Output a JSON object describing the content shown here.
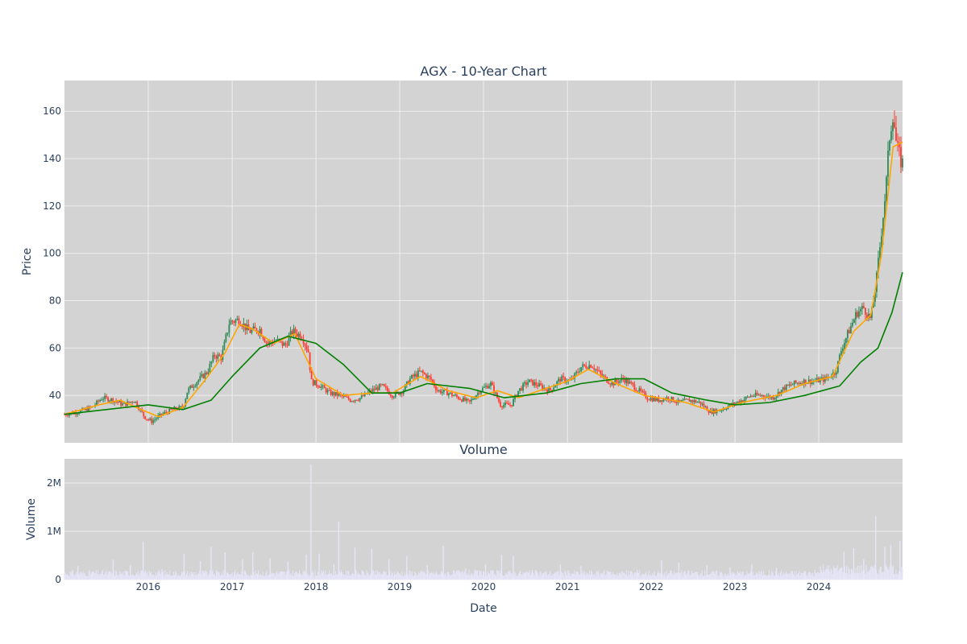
{
  "chart_data": [
    {
      "type": "candlestick",
      "title": "AGX - 10-Year Chart",
      "ylabel": "Price",
      "xlabel": "",
      "x_range": [
        "2015-01-01",
        "2024-12-31"
      ],
      "ylim": [
        20,
        173
      ],
      "y_ticks": [
        40,
        60,
        80,
        100,
        120,
        140,
        160
      ],
      "grid": true,
      "series": [
        {
          "kind": "close_path",
          "color_up": "#2e8b57",
          "color_down": "#ff3b30",
          "points": [
            [
              "2015-01-01",
              32
            ],
            [
              "2015-03-01",
              33
            ],
            [
              "2015-05-01",
              35
            ],
            [
              "2015-06-15",
              39
            ],
            [
              "2015-08-01",
              38
            ],
            [
              "2015-09-15",
              36
            ],
            [
              "2015-11-01",
              38
            ],
            [
              "2015-12-15",
              31
            ],
            [
              "2016-01-15",
              29
            ],
            [
              "2016-03-01",
              32
            ],
            [
              "2016-04-15",
              34
            ],
            [
              "2016-06-01",
              35
            ],
            [
              "2016-06-20",
              42
            ],
            [
              "2016-08-01",
              46
            ],
            [
              "2016-09-15",
              50
            ],
            [
              "2016-10-15",
              57
            ],
            [
              "2016-11-15",
              56
            ],
            [
              "2016-12-20",
              71
            ],
            [
              "2017-02-01",
              72
            ],
            [
              "2017-03-15",
              67
            ],
            [
              "2017-05-01",
              68
            ],
            [
              "2017-06-01",
              62
            ],
            [
              "2017-07-15",
              63
            ],
            [
              "2017-08-20",
              61
            ],
            [
              "2017-09-20",
              67
            ],
            [
              "2017-11-01",
              65
            ],
            [
              "2017-12-01",
              58
            ],
            [
              "2017-12-10",
              46
            ],
            [
              "2018-01-20",
              44
            ],
            [
              "2018-03-01",
              41
            ],
            [
              "2018-04-15",
              40
            ],
            [
              "2018-06-01",
              38
            ],
            [
              "2018-07-15",
              39
            ],
            [
              "2018-09-01",
              42
            ],
            [
              "2018-10-15",
              44
            ],
            [
              "2018-12-01",
              40
            ],
            [
              "2019-01-15",
              42
            ],
            [
              "2019-02-15",
              47
            ],
            [
              "2019-04-01",
              50
            ],
            [
              "2019-05-15",
              47
            ],
            [
              "2019-06-15",
              42
            ],
            [
              "2019-08-01",
              41
            ],
            [
              "2019-09-15",
              39
            ],
            [
              "2019-11-01",
              37
            ],
            [
              "2019-12-15",
              42
            ],
            [
              "2020-02-01",
              45
            ],
            [
              "2020-03-15",
              36
            ],
            [
              "2020-05-01",
              36
            ],
            [
              "2020-06-01",
              42
            ],
            [
              "2020-07-15",
              46
            ],
            [
              "2020-09-01",
              44
            ],
            [
              "2020-10-15",
              42
            ],
            [
              "2020-12-01",
              47
            ],
            [
              "2021-01-15",
              46
            ],
            [
              "2021-03-01",
              52
            ],
            [
              "2021-04-15",
              53
            ],
            [
              "2021-06-01",
              48
            ],
            [
              "2021-07-15",
              45
            ],
            [
              "2021-09-01",
              47
            ],
            [
              "2021-10-15",
              44
            ],
            [
              "2021-12-15",
              39
            ],
            [
              "2022-02-01",
              38
            ],
            [
              "2022-03-15",
              39
            ],
            [
              "2022-05-01",
              37
            ],
            [
              "2022-06-15",
              38
            ],
            [
              "2022-08-01",
              37
            ],
            [
              "2022-09-15",
              33
            ],
            [
              "2022-11-01",
              34
            ],
            [
              "2022-12-15",
              36
            ],
            [
              "2023-02-01",
              38
            ],
            [
              "2023-03-15",
              40
            ],
            [
              "2023-05-01",
              40
            ],
            [
              "2023-06-15",
              39
            ],
            [
              "2023-08-01",
              43
            ],
            [
              "2023-09-15",
              45
            ],
            [
              "2023-11-01",
              46
            ],
            [
              "2023-12-15",
              46
            ],
            [
              "2024-02-01",
              47
            ],
            [
              "2024-03-15",
              50
            ],
            [
              "2024-04-10",
              60
            ],
            [
              "2024-05-15",
              68
            ],
            [
              "2024-06-15",
              75
            ],
            [
              "2024-07-15",
              77
            ],
            [
              "2024-08-15",
              72
            ],
            [
              "2024-09-10",
              90
            ],
            [
              "2024-10-01",
              110
            ],
            [
              "2024-10-20",
              128
            ],
            [
              "2024-11-05",
              150
            ],
            [
              "2024-11-20",
              160
            ],
            [
              "2024-12-05",
              145
            ],
            [
              "2024-12-20",
              140
            ],
            [
              "2024-12-31",
              138
            ]
          ]
        },
        {
          "kind": "moving_average_short",
          "color": "#ffa500",
          "points": [
            [
              "2015-01-01",
              32
            ],
            [
              "2015-06-01",
              36
            ],
            [
              "2015-09-01",
              38
            ],
            [
              "2015-12-01",
              34
            ],
            [
              "2016-02-15",
              31
            ],
            [
              "2016-06-01",
              35
            ],
            [
              "2016-09-01",
              46
            ],
            [
              "2016-12-01",
              58
            ],
            [
              "2017-02-01",
              70
            ],
            [
              "2017-04-01",
              68
            ],
            [
              "2017-07-01",
              62
            ],
            [
              "2017-10-01",
              66
            ],
            [
              "2018-01-01",
              47
            ],
            [
              "2018-05-01",
              40
            ],
            [
              "2018-09-01",
              41
            ],
            [
              "2018-12-01",
              41
            ],
            [
              "2019-04-01",
              48
            ],
            [
              "2019-08-01",
              42
            ],
            [
              "2019-12-01",
              39
            ],
            [
              "2020-03-01",
              42
            ],
            [
              "2020-06-01",
              39
            ],
            [
              "2020-10-01",
              43
            ],
            [
              "2021-01-01",
              46
            ],
            [
              "2021-04-01",
              51
            ],
            [
              "2021-08-01",
              45
            ],
            [
              "2021-12-01",
              40
            ],
            [
              "2022-06-01",
              37
            ],
            [
              "2022-10-01",
              33
            ],
            [
              "2023-02-01",
              37
            ],
            [
              "2023-07-01",
              40
            ],
            [
              "2023-11-01",
              45
            ],
            [
              "2024-03-01",
              48
            ],
            [
              "2024-06-01",
              67
            ],
            [
              "2024-08-15",
              74
            ],
            [
              "2024-10-01",
              100
            ],
            [
              "2024-11-20",
              145
            ],
            [
              "2024-12-31",
              147
            ]
          ]
        },
        {
          "kind": "moving_average_long",
          "color": "#008000",
          "points": [
            [
              "2015-01-01",
              32
            ],
            [
              "2015-07-01",
              34
            ],
            [
              "2016-01-01",
              36
            ],
            [
              "2016-06-01",
              34
            ],
            [
              "2016-10-01",
              38
            ],
            [
              "2017-01-01",
              48
            ],
            [
              "2017-05-01",
              60
            ],
            [
              "2017-09-01",
              65
            ],
            [
              "2018-01-01",
              62
            ],
            [
              "2018-05-01",
              53
            ],
            [
              "2018-09-01",
              41
            ],
            [
              "2019-01-01",
              41
            ],
            [
              "2019-05-01",
              45
            ],
            [
              "2019-11-01",
              43
            ],
            [
              "2020-04-01",
              39
            ],
            [
              "2020-10-01",
              41
            ],
            [
              "2021-03-01",
              45
            ],
            [
              "2021-08-01",
              47
            ],
            [
              "2021-12-01",
              47
            ],
            [
              "2022-04-01",
              41
            ],
            [
              "2022-09-01",
              38
            ],
            [
              "2023-01-01",
              36
            ],
            [
              "2023-06-01",
              37
            ],
            [
              "2023-11-01",
              40
            ],
            [
              "2024-04-01",
              44
            ],
            [
              "2024-07-01",
              54
            ],
            [
              "2024-09-15",
              60
            ],
            [
              "2024-11-15",
              75
            ],
            [
              "2024-12-31",
              92
            ]
          ]
        }
      ]
    },
    {
      "type": "bar",
      "title": "Volume",
      "ylabel": "Volume",
      "xlabel": "Date",
      "x_range": [
        "2015-01-01",
        "2024-12-31"
      ],
      "ylim": [
        0,
        2500000
      ],
      "y_ticks": [
        0,
        1000000,
        2000000
      ],
      "y_tick_labels": [
        "0",
        "1M",
        "2M"
      ],
      "x_ticks": [
        "2016",
        "2017",
        "2018",
        "2019",
        "2020",
        "2021",
        "2022",
        "2023",
        "2024"
      ],
      "bar_color": "#e6e6fa",
      "values": [
        [
          "2015-03-01",
          280000
        ],
        [
          "2015-05-01",
          160000
        ],
        [
          "2015-08-01",
          410000
        ],
        [
          "2015-10-15",
          300000
        ],
        [
          "2015-12-10",
          780000
        ],
        [
          "2016-03-01",
          220000
        ],
        [
          "2016-06-05",
          530000
        ],
        [
          "2016-08-15",
          380000
        ],
        [
          "2016-10-01",
          680000
        ],
        [
          "2016-12-01",
          560000
        ],
        [
          "2017-02-15",
          420000
        ],
        [
          "2017-04-01",
          560000
        ],
        [
          "2017-06-15",
          440000
        ],
        [
          "2017-09-01",
          380000
        ],
        [
          "2017-11-20",
          520000
        ],
        [
          "2017-12-10",
          2380000
        ],
        [
          "2018-01-15",
          540000
        ],
        [
          "2018-03-20",
          320000
        ],
        [
          "2018-04-10",
          1200000
        ],
        [
          "2018-06-20",
          660000
        ],
        [
          "2018-09-01",
          640000
        ],
        [
          "2018-11-15",
          420000
        ],
        [
          "2019-02-01",
          480000
        ],
        [
          "2019-05-01",
          300000
        ],
        [
          "2019-07-10",
          700000
        ],
        [
          "2019-10-15",
          240000
        ],
        [
          "2020-01-10",
          320000
        ],
        [
          "2020-03-20",
          510000
        ],
        [
          "2020-05-10",
          490000
        ],
        [
          "2020-08-01",
          200000
        ],
        [
          "2020-12-01",
          320000
        ],
        [
          "2021-03-01",
          280000
        ],
        [
          "2021-07-01",
          160000
        ],
        [
          "2021-11-01",
          200000
        ],
        [
          "2022-02-15",
          400000
        ],
        [
          "2022-05-01",
          350000
        ],
        [
          "2022-09-01",
          300000
        ],
        [
          "2022-12-10",
          250000
        ],
        [
          "2023-03-15",
          320000
        ],
        [
          "2023-07-01",
          250000
        ],
        [
          "2023-11-01",
          180000
        ],
        [
          "2024-02-01",
          200000
        ],
        [
          "2024-04-20",
          580000
        ],
        [
          "2024-06-01",
          650000
        ],
        [
          "2024-07-15",
          420000
        ],
        [
          "2024-09-05",
          1320000
        ],
        [
          "2024-10-15",
          680000
        ],
        [
          "2024-11-10",
          720000
        ],
        [
          "2024-12-20",
          800000
        ]
      ]
    }
  ]
}
